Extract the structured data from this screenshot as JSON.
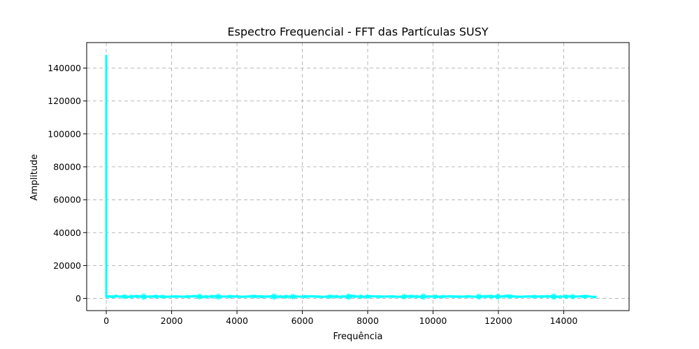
{
  "chart_data": {
    "type": "line",
    "title": "Espectro Frequencial - FFT das Partículas SUSY",
    "xlabel": "Frequência",
    "ylabel": "Amplitude",
    "xlim": [
      -600,
      16000
    ],
    "ylim": [
      -7400,
      155500
    ],
    "x_ticks": [
      0,
      2000,
      4000,
      6000,
      8000,
      10000,
      12000,
      14000
    ],
    "y_ticks": [
      0,
      20000,
      40000,
      60000,
      80000,
      100000,
      120000,
      140000
    ],
    "x_tick_labels": [
      "0",
      "2000",
      "4000",
      "6000",
      "8000",
      "10000",
      "12000",
      "14000"
    ],
    "y_tick_labels": [
      "0",
      "20000",
      "40000",
      "60000",
      "80000",
      "100000",
      "120000",
      "140000"
    ],
    "grid": true,
    "series": [
      {
        "color": "#00ffff",
        "x": [
          0,
          1,
          2,
          3,
          10,
          100,
          200,
          300,
          400,
          500,
          700,
          900,
          1200,
          1500,
          1800,
          2100,
          2400,
          2700,
          3000,
          3300,
          3600,
          3900,
          4200,
          4500,
          4800,
          5100,
          5400,
          5700,
          6000,
          6300,
          6600,
          6900,
          7200,
          7500,
          7800,
          8100,
          8400,
          8700,
          9000,
          9300,
          9600,
          9900,
          10200,
          10500,
          10800,
          11100,
          11400,
          11700,
          12000,
          12300,
          12600,
          12900,
          13200,
          13500,
          13800,
          14100,
          14400,
          14700,
          15000
        ],
        "y": [
          148000,
          1500,
          900,
          1200,
          800,
          1400,
          900,
          1700,
          1100,
          1300,
          900,
          1500,
          1000,
          1400,
          900,
          1300,
          1000,
          1500,
          900,
          1400,
          1100,
          1300,
          900,
          1600,
          1000,
          1400,
          900,
          1300,
          1100,
          1400,
          900,
          1300,
          1000,
          1700,
          900,
          1400,
          1100,
          1300,
          900,
          1500,
          1000,
          1300,
          900,
          1400,
          1000,
          1300,
          900,
          1500,
          1000,
          1800,
          900,
          1300,
          1100,
          1400,
          900,
          1300,
          1200,
          1500,
          600
        ]
      }
    ]
  }
}
